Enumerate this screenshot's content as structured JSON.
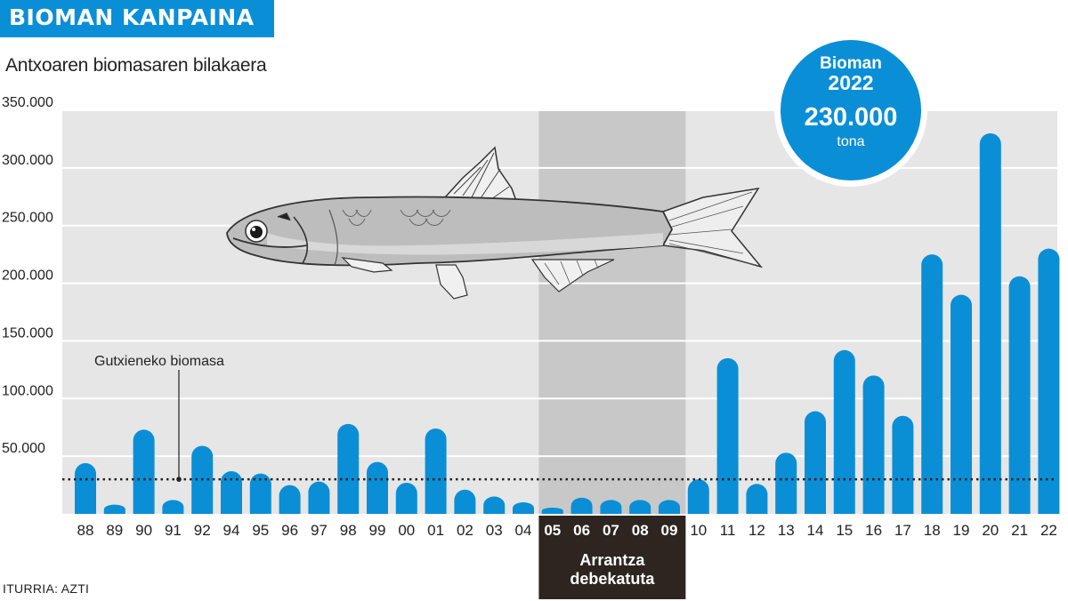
{
  "header": {
    "title": "BIOMAN KANPAINA"
  },
  "subtitle": "Antxoaren biomasaren bilakaera",
  "source": "ITURRIA: AZTI",
  "callout": {
    "line1": "Bioman",
    "line2": "2022",
    "value": "230.000",
    "unit": "tona"
  },
  "colors": {
    "accent": "#0a8fd6",
    "plot_bg": "#e6e6e6",
    "band_bg": "#c8c8c8",
    "band_label_bg": "#2e2520"
  },
  "chart_data": {
    "type": "bar",
    "categories": [
      "88",
      "89",
      "90",
      "91",
      "92",
      "94",
      "95",
      "96",
      "97",
      "98",
      "99",
      "00",
      "01",
      "02",
      "03",
      "04",
      "05",
      "06",
      "07",
      "08",
      "09",
      "10",
      "11",
      "12",
      "13",
      "14",
      "15",
      "16",
      "17",
      "18",
      "19",
      "20",
      "21",
      "22"
    ],
    "values": [
      44000,
      8000,
      73000,
      12000,
      59000,
      37000,
      35000,
      25000,
      28000,
      78000,
      45000,
      27000,
      74000,
      21000,
      15000,
      10000,
      4000,
      14000,
      12000,
      12000,
      12000,
      30000,
      135000,
      26000,
      53000,
      89000,
      142000,
      120000,
      85000,
      225000,
      190000,
      330000,
      206000,
      230000
    ],
    "ylim": [
      0,
      350000
    ],
    "yticks": [
      "350.000",
      "300.000",
      "250.000",
      "200.000",
      "150.000",
      "100.000",
      "50.000"
    ],
    "ytick_values": [
      350000,
      300000,
      250000,
      200000,
      150000,
      100000,
      50000
    ],
    "threshold": {
      "label": "Gutxieneko biomasa",
      "value": 30000
    },
    "shaded_period": {
      "categories": [
        "05",
        "06",
        "07",
        "08",
        "09"
      ],
      "label_line1": "Arrantza",
      "label_line2": "debekatuta"
    },
    "grid": true,
    "title": "",
    "xlabel": "",
    "ylabel": ""
  }
}
